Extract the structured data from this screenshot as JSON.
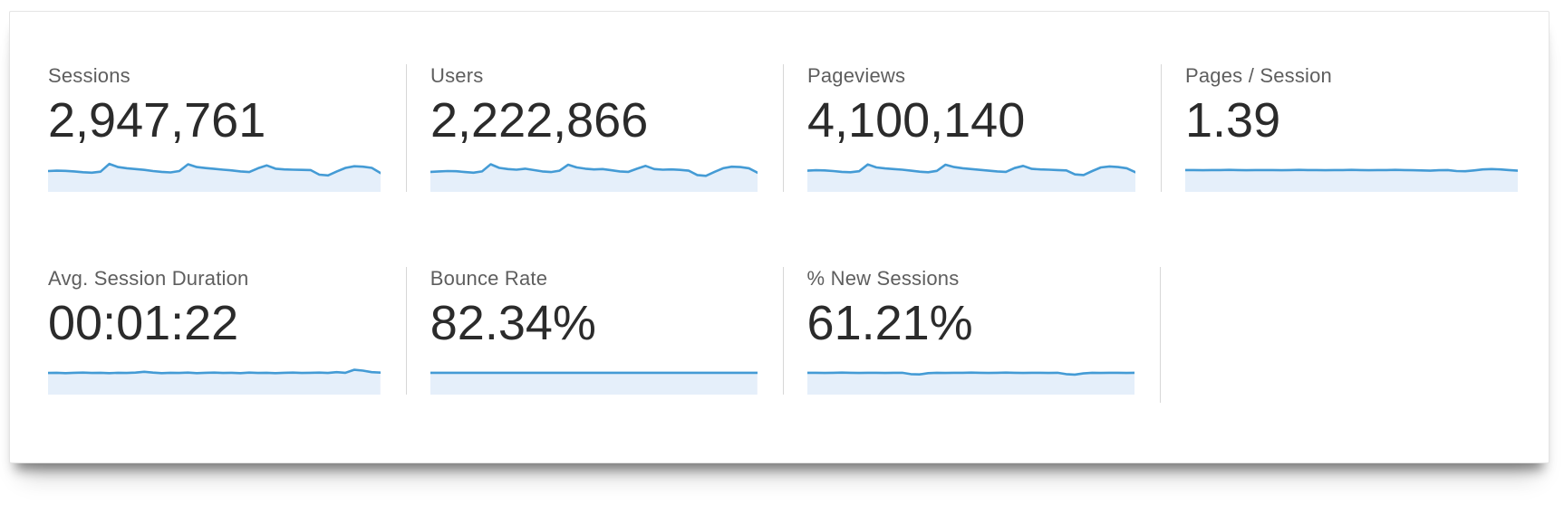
{
  "colors": {
    "spark_line": "#449bd5",
    "spark_fill": "#e5effa",
    "divider": "#d7d7d7",
    "label_text": "#5e5e5e",
    "value_text": "#2b2b2b"
  },
  "cards": [
    {
      "label": "Sessions",
      "value": "2,947,761",
      "spark": [
        50,
        52,
        51,
        48,
        44,
        42,
        47,
        86,
        70,
        64,
        60,
        56,
        50,
        46,
        43,
        50,
        84,
        70,
        65,
        61,
        57,
        53,
        48,
        45,
        64,
        78,
        62,
        58,
        57,
        56,
        55,
        32,
        28,
        48,
        66,
        74,
        72,
        66,
        40
      ]
    },
    {
      "label": "Users",
      "value": "2,222,866",
      "spark": [
        46,
        48,
        50,
        49,
        45,
        42,
        48,
        84,
        66,
        60,
        57,
        62,
        55,
        48,
        45,
        52,
        82,
        68,
        62,
        58,
        60,
        54,
        48,
        46,
        62,
        76,
        60,
        57,
        58,
        56,
        52,
        30,
        26,
        46,
        64,
        72,
        70,
        64,
        42
      ]
    },
    {
      "label": "Pageviews",
      "value": "4,100,140",
      "spark": [
        52,
        54,
        53,
        50,
        46,
        44,
        49,
        83,
        68,
        63,
        60,
        57,
        52,
        47,
        44,
        51,
        82,
        70,
        64,
        60,
        56,
        52,
        48,
        46,
        65,
        76,
        61,
        58,
        57,
        55,
        53,
        33,
        30,
        50,
        68,
        73,
        70,
        64,
        44
      ]
    },
    {
      "label": "Pages / Session",
      "value": "1.39",
      "spark": [
        55,
        55,
        54,
        55,
        55,
        56,
        55,
        54,
        55,
        55,
        55,
        54,
        55,
        56,
        55,
        55,
        54,
        55,
        55,
        56,
        55,
        54,
        55,
        55,
        56,
        55,
        54,
        53,
        52,
        54,
        55,
        50,
        49,
        53,
        58,
        60,
        58,
        55,
        52
      ]
    },
    {
      "label": "Avg. Session Duration",
      "value": "00:01:22",
      "spark": [
        54,
        55,
        53,
        55,
        56,
        54,
        55,
        53,
        55,
        54,
        56,
        60,
        56,
        53,
        55,
        54,
        56,
        53,
        55,
        56,
        54,
        55,
        53,
        56,
        54,
        55,
        53,
        55,
        56,
        54,
        55,
        56,
        54,
        58,
        55,
        70,
        66,
        58,
        56
      ]
    },
    {
      "label": "Bounce Rate",
      "value": "82.34%",
      "spark": [
        55,
        55,
        55,
        55,
        55,
        55,
        55,
        55,
        55,
        55,
        55,
        55,
        55,
        55,
        55,
        55,
        55,
        55,
        55,
        55,
        55,
        55,
        55,
        55,
        55,
        55,
        55,
        55,
        55,
        55,
        55,
        55,
        55,
        55,
        55,
        55,
        55,
        55,
        55
      ]
    },
    {
      "label": "% New Sessions",
      "value": "61.21%",
      "spark": [
        55,
        55,
        54,
        55,
        56,
        55,
        54,
        55,
        55,
        54,
        55,
        55,
        48,
        47,
        53,
        55,
        54,
        55,
        55,
        56,
        55,
        54,
        55,
        56,
        55,
        54,
        55,
        55,
        54,
        55,
        48,
        46,
        52,
        55,
        54,
        55,
        55,
        54,
        55
      ]
    }
  ]
}
